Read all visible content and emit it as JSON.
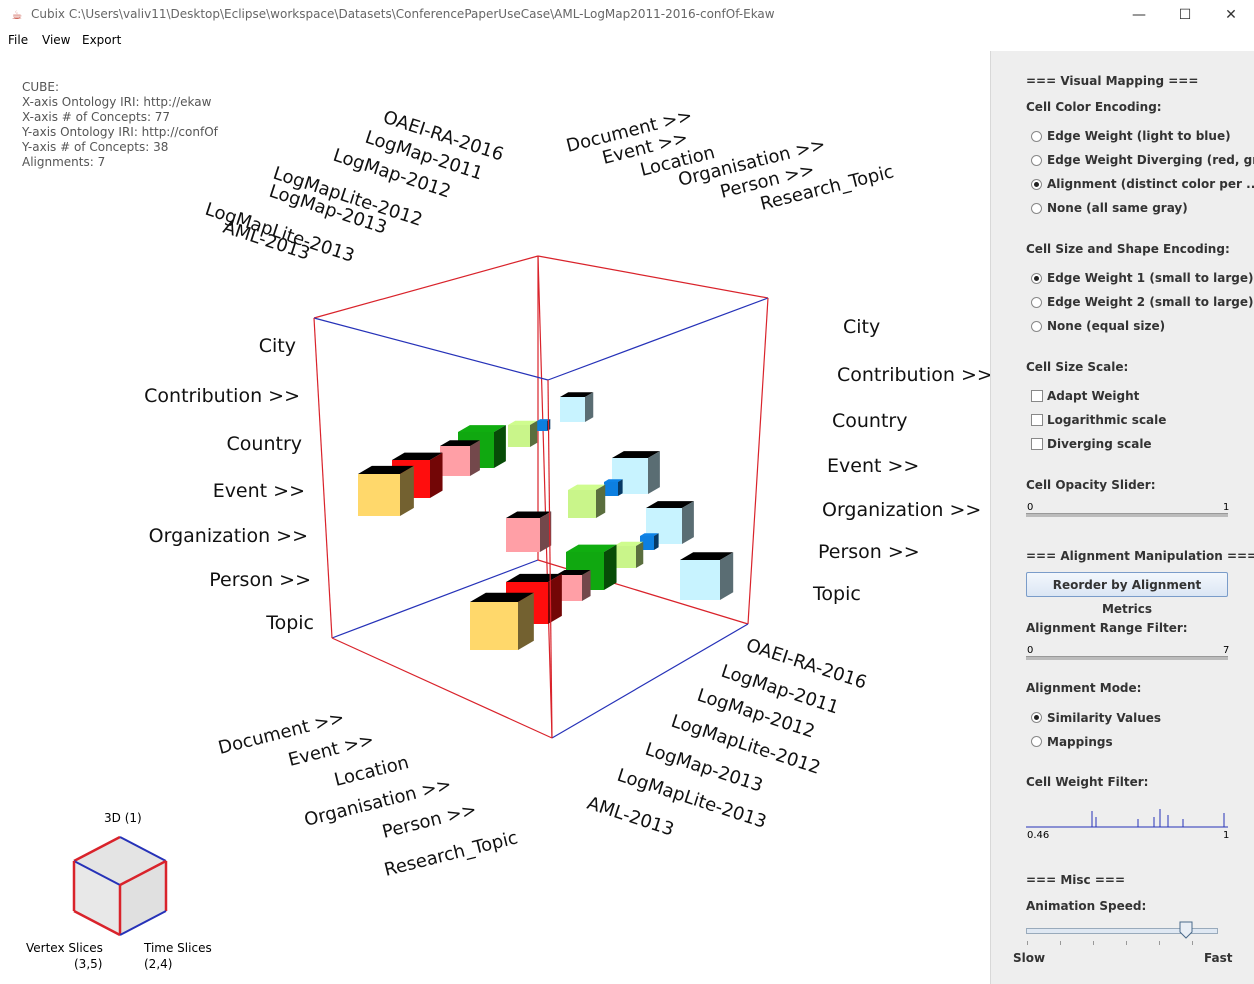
{
  "window": {
    "title": "Cubix C:\\Users\\valiv11\\Desktop\\Eclipse\\workspace\\Datasets\\ConferencePaperUseCase\\AML-LogMap2011-2016-confOf-Ekaw",
    "minimize_glyph": "—",
    "maximize_glyph": "☐",
    "close_glyph": "✕"
  },
  "menu": {
    "file": "File",
    "view": "View",
    "export": "Export"
  },
  "info": {
    "line1": "CUBE:",
    "line2": "X-axis Ontology IRI: http://ekaw",
    "line3": "X-axis # of Concepts: 77",
    "line4": "Y-axis Ontology IRI: http://confOf",
    "line5": "Y-axis # of Concepts: 38",
    "line6": "Alignments: 7"
  },
  "cube": {
    "left_labels": [
      "City",
      "Contribution >>",
      "Country",
      "Event >>",
      "Organization >>",
      "Person >>",
      "Topic"
    ],
    "right_labels": [
      "City",
      "Contribution >>",
      "Country",
      "Event >>",
      "Organization >>",
      "Person >>",
      "Topic"
    ],
    "top_alignments": [
      "OAEI-RA-2016",
      "LogMap-2011",
      "LogMap-2012",
      "LogMapLite-2012",
      "LogMap-2013",
      "LogMapLite-2013",
      "AML-2013"
    ],
    "top_concepts": [
      "Document >>",
      "Event >>",
      "Location",
      "Organisation >>",
      "Person >>",
      "Research_Topic"
    ],
    "bottom_alignments": [
      "OAEI-RA-2016",
      "LogMap-2011",
      "LogMap-2012",
      "LogMapLite-2012",
      "LogMap-2013",
      "LogMapLite-2013",
      "AML-2013"
    ],
    "bottom_concepts": [
      "Document >>",
      "Event >>",
      "Location",
      "Organisation >>",
      "Person >>",
      "Research_Topic"
    ],
    "colors": {
      "frame_red": "#d9232b",
      "frame_blue": "#2632b8",
      "aml": "#ffd86b",
      "lite2013": "#ff0d0d",
      "map2013": "#ff9fa6",
      "lite2012": "#10a810",
      "map2012": "#c9f58a",
      "map2011": "#0d7fe0",
      "oaei": "#c8f3ff"
    }
  },
  "minimap": {
    "title": "3D (1)",
    "vertex_label": "Vertex Slices",
    "vertex_value": "(3,5)",
    "time_label": "Time Slices",
    "time_value": "(2,4)"
  },
  "panel": {
    "visual_mapping": "=== Visual Mapping ===",
    "color_encoding": "Cell Color Encoding:",
    "color_options": [
      "Edge Weight (light to blue)",
      "Edge Weight Diverging (red, gr...",
      "Alignment (distinct color per ...",
      "None (all same gray)"
    ],
    "color_selected": 2,
    "size_shape": "Cell Size and Shape Encoding:",
    "size_options": [
      "Edge Weight 1 (small to large)",
      "Edge Weight 2 (small to large)",
      "None (equal size)"
    ],
    "size_selected": 0,
    "size_scale": "Cell Size Scale:",
    "scale_options": [
      "Adapt Weight",
      "Logarithmic scale",
      "Diverging scale"
    ],
    "opacity_label": "Cell Opacity Slider:",
    "opacity_min": "0",
    "opacity_max": "1",
    "opacity_value": 1,
    "alignment_manip": "=== Alignment Manipulation ===",
    "reorder_button": "Reorder by Alignment Metrics",
    "range_label": "Alignment Range Filter:",
    "range_min": "0",
    "range_max": "7",
    "mode_label": "Alignment Mode:",
    "mode_options": [
      "Similarity Values",
      "Mappings"
    ],
    "mode_selected": 0,
    "weight_filter": "Cell Weight Filter:",
    "weight_min": "0.46",
    "weight_max": "1",
    "misc": "=== Misc ===",
    "anim_speed": "Animation Speed:",
    "slow": "Slow",
    "fast": "Fast",
    "speed_value": 0.85
  }
}
